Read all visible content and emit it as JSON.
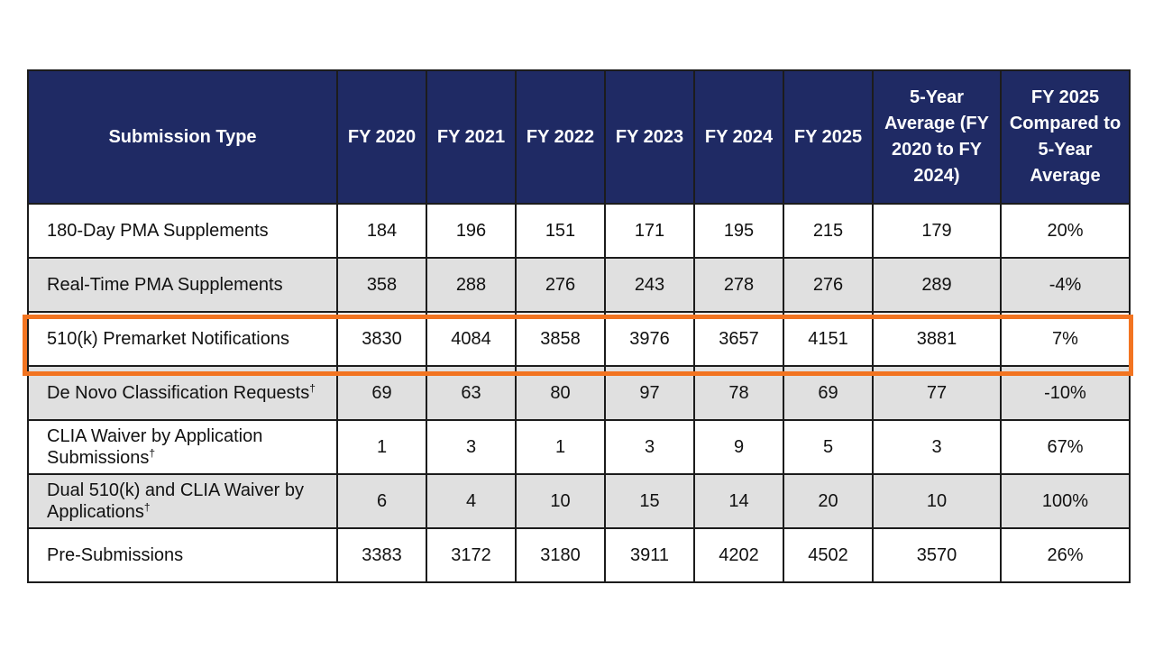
{
  "table": {
    "headers": [
      "Submission Type",
      "FY 2020",
      "FY 2021",
      "FY 2022",
      "FY 2023",
      "FY 2024",
      "FY 2025",
      "5-Year Average (FY 2020 to FY 2024)",
      "FY 2025 Compared to 5-Year Average"
    ],
    "rows": [
      {
        "type": "180-Day PMA Supplements",
        "dagger": "",
        "values": [
          "184",
          "196",
          "151",
          "171",
          "195",
          "215",
          "179",
          "20%"
        ]
      },
      {
        "type": "Real-Time PMA Supplements",
        "dagger": "",
        "values": [
          "358",
          "288",
          "276",
          "243",
          "278",
          "276",
          "289",
          "-4%"
        ]
      },
      {
        "type": "510(k) Premarket Notifications",
        "dagger": "",
        "values": [
          "3830",
          "4084",
          "3858",
          "3976",
          "3657",
          "4151",
          "3881",
          "7%"
        ]
      },
      {
        "type": "De Novo Classification Requests",
        "dagger": "†",
        "values": [
          "69",
          "63",
          "80",
          "97",
          "78",
          "69",
          "77",
          "-10%"
        ]
      },
      {
        "type": "CLIA Waiver by Application Submissions",
        "dagger": "†",
        "values": [
          "1",
          "3",
          "1",
          "3",
          "9",
          "5",
          "3",
          "67%"
        ]
      },
      {
        "type": "Dual 510(k) and CLIA Waiver by Applications",
        "dagger": "†",
        "values": [
          "6",
          "4",
          "10",
          "15",
          "14",
          "20",
          "10",
          "100%"
        ]
      },
      {
        "type": "Pre-Submissions",
        "dagger": "",
        "values": [
          "3383",
          "3172",
          "3180",
          "3911",
          "4202",
          "4502",
          "3570",
          "26%"
        ]
      }
    ],
    "highlighted_row": "510(k) Premarket Notifications",
    "colors": {
      "header_bg": "#1f2a64",
      "header_text": "#ffffff",
      "shaded_row": "#e0e0e0",
      "highlight_border": "#f27421"
    }
  }
}
